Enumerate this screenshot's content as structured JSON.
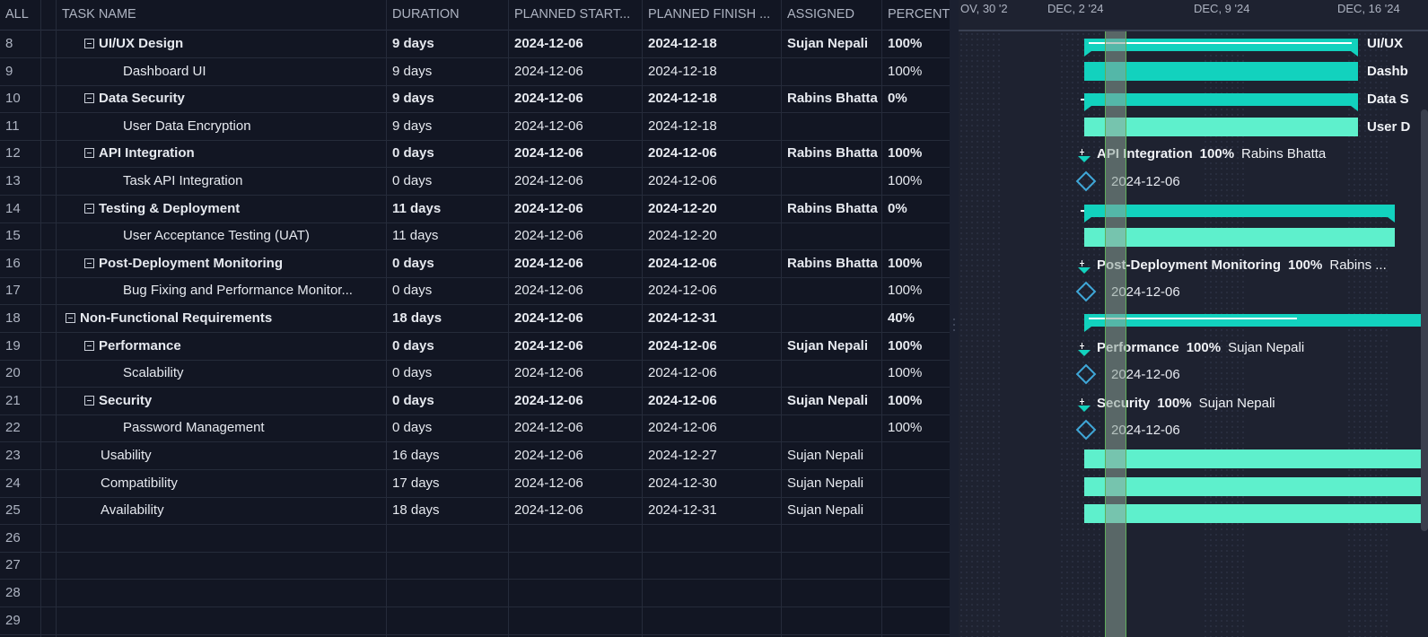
{
  "columns": [
    "ALL",
    "TASK NAME",
    "DURATION",
    "PLANNED START...",
    "PLANNED FINISH ...",
    "ASSIGNED",
    "PERCENT"
  ],
  "rows": [
    {
      "num": "8",
      "name": "UI/UX Design",
      "duration": "9 days",
      "start": "2024-12-06",
      "finish": "2024-12-18",
      "assigned": "Sujan Nepali",
      "percent": "100%"
    },
    {
      "num": "9",
      "name": "Dashboard UI",
      "duration": "9 days",
      "start": "2024-12-06",
      "finish": "2024-12-18",
      "assigned": "",
      "percent": "100%"
    },
    {
      "num": "10",
      "name": "Data Security",
      "duration": "9 days",
      "start": "2024-12-06",
      "finish": "2024-12-18",
      "assigned": "Rabins Bhatta",
      "percent": "0%"
    },
    {
      "num": "11",
      "name": "User Data Encryption",
      "duration": "9 days",
      "start": "2024-12-06",
      "finish": "2024-12-18",
      "assigned": "",
      "percent": ""
    },
    {
      "num": "12",
      "name": "API Integration",
      "duration": "0 days",
      "start": "2024-12-06",
      "finish": "2024-12-06",
      "assigned": "Rabins Bhatta",
      "percent": "100%"
    },
    {
      "num": "13",
      "name": "Task API Integration",
      "duration": "0 days",
      "start": "2024-12-06",
      "finish": "2024-12-06",
      "assigned": "",
      "percent": "100%"
    },
    {
      "num": "14",
      "name": "Testing & Deployment",
      "duration": "11 days",
      "start": "2024-12-06",
      "finish": "2024-12-20",
      "assigned": "Rabins Bhatta",
      "percent": "0%"
    },
    {
      "num": "15",
      "name": "User Acceptance Testing (UAT)",
      "duration": "11 days",
      "start": "2024-12-06",
      "finish": "2024-12-20",
      "assigned": "",
      "percent": ""
    },
    {
      "num": "16",
      "name": "Post-Deployment Monitoring",
      "duration": "0 days",
      "start": "2024-12-06",
      "finish": "2024-12-06",
      "assigned": "Rabins Bhatta",
      "percent": "100%"
    },
    {
      "num": "17",
      "name": "Bug Fixing and Performance Monitor...",
      "duration": "0 days",
      "start": "2024-12-06",
      "finish": "2024-12-06",
      "assigned": "",
      "percent": "100%"
    },
    {
      "num": "18",
      "name": "Non-Functional Requirements",
      "duration": "18 days",
      "start": "2024-12-06",
      "finish": "2024-12-31",
      "assigned": "",
      "percent": "40%"
    },
    {
      "num": "19",
      "name": "Performance",
      "duration": "0 days",
      "start": "2024-12-06",
      "finish": "2024-12-06",
      "assigned": "Sujan Nepali",
      "percent": "100%"
    },
    {
      "num": "20",
      "name": "Scalability",
      "duration": "0 days",
      "start": "2024-12-06",
      "finish": "2024-12-06",
      "assigned": "",
      "percent": "100%"
    },
    {
      "num": "21",
      "name": "Security",
      "duration": "0 days",
      "start": "2024-12-06",
      "finish": "2024-12-06",
      "assigned": "Sujan Nepali",
      "percent": "100%"
    },
    {
      "num": "22",
      "name": "Password Management",
      "duration": "0 days",
      "start": "2024-12-06",
      "finish": "2024-12-06",
      "assigned": "",
      "percent": "100%"
    },
    {
      "num": "23",
      "name": "Usability",
      "duration": "16 days",
      "start": "2024-12-06",
      "finish": "2024-12-27",
      "assigned": "Sujan Nepali",
      "percent": ""
    },
    {
      "num": "24",
      "name": "Compatibility",
      "duration": "17 days",
      "start": "2024-12-06",
      "finish": "2024-12-30",
      "assigned": "Sujan Nepali",
      "percent": ""
    },
    {
      "num": "25",
      "name": "Availability",
      "duration": "18 days",
      "start": "2024-12-06",
      "finish": "2024-12-31",
      "assigned": "Sujan Nepali",
      "percent": ""
    },
    {
      "num": "26",
      "name": "",
      "duration": "",
      "start": "",
      "finish": "",
      "assigned": "",
      "percent": ""
    },
    {
      "num": "27",
      "name": "",
      "duration": "",
      "start": "",
      "finish": "",
      "assigned": "",
      "percent": ""
    },
    {
      "num": "28",
      "name": "",
      "duration": "",
      "start": "",
      "finish": "",
      "assigned": "",
      "percent": ""
    },
    {
      "num": "29",
      "name": "",
      "duration": "",
      "start": "",
      "finish": "",
      "assigned": "",
      "percent": ""
    }
  ],
  "timeline_dates": [
    "OV, 30 '2",
    "DEC, 2 '24",
    "DEC, 9 '24",
    "DEC, 16 '24"
  ],
  "gantt": {
    "bar_labels": {
      "ui_ux": "UI/UX",
      "dashboard": "Dashb",
      "data_security": "Data S",
      "user_data": "User D"
    },
    "milestones": {
      "api": {
        "name": "API Integration",
        "percent": "100%",
        "assigned": "Rabins Bhatta"
      },
      "post": {
        "name": "Post-Deployment Monitoring",
        "percent": "100%",
        "assigned": "Rabins ..."
      },
      "perf": {
        "name": "Performance",
        "percent": "100%",
        "assigned": "Sujan Nepali"
      },
      "sec": {
        "name": "Security",
        "percent": "100%",
        "assigned": "Sujan Nepali"
      }
    },
    "milestone_date": "2024-12-06"
  },
  "colors": {
    "bar": "#5ef0cc",
    "parent_bar": "#12d2be",
    "milestone": "#3fa7d8",
    "today": "#5fae5a"
  }
}
